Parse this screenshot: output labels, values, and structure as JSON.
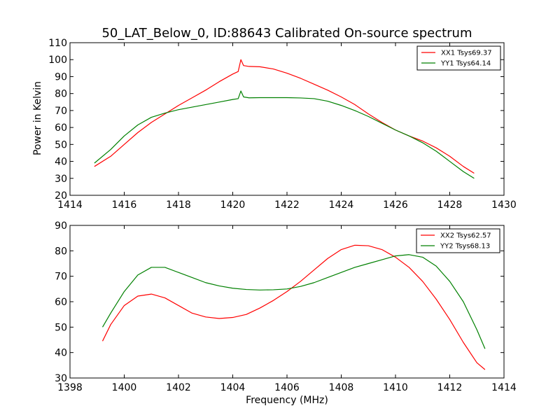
{
  "chart_data": [
    {
      "type": "line",
      "title": "50_LAT_Below_0, ID:88643 Calibrated On-source spectrum",
      "xlabel": "",
      "ylabel": "Power in Kelvin",
      "xlim": [
        1414,
        1430
      ],
      "ylim": [
        20,
        110
      ],
      "xticks": [
        1414,
        1416,
        1418,
        1420,
        1422,
        1424,
        1426,
        1428,
        1430
      ],
      "yticks": [
        20,
        30,
        40,
        50,
        60,
        70,
        80,
        90,
        100,
        110
      ],
      "grid": false,
      "legend_position": "top-right",
      "series": [
        {
          "name": "XX1 Tsys69.37",
          "color": "#ff0000",
          "points": [
            [
              1414.9,
              37
            ],
            [
              1415.5,
              43
            ],
            [
              1416,
              50
            ],
            [
              1416.5,
              57
            ],
            [
              1417,
              63
            ],
            [
              1417.5,
              68
            ],
            [
              1418,
              73
            ],
            [
              1418.5,
              77.5
            ],
            [
              1419,
              82
            ],
            [
              1419.5,
              87
            ],
            [
              1420,
              91.5
            ],
            [
              1420.2,
              93
            ],
            [
              1420.3,
              100
            ],
            [
              1420.4,
              96.5
            ],
            [
              1420.6,
              96
            ],
            [
              1421,
              95.8
            ],
            [
              1421.5,
              94.5
            ],
            [
              1422,
              92
            ],
            [
              1422.5,
              89
            ],
            [
              1423,
              85.5
            ],
            [
              1423.5,
              82
            ],
            [
              1424,
              78
            ],
            [
              1424.5,
              73.5
            ],
            [
              1425,
              68
            ],
            [
              1425.5,
              63
            ],
            [
              1426,
              58.5
            ],
            [
              1426.5,
              55
            ],
            [
              1427,
              52
            ],
            [
              1427.5,
              48
            ],
            [
              1428,
              43
            ],
            [
              1428.5,
              37
            ],
            [
              1428.9,
              33
            ]
          ]
        },
        {
          "name": "YY1 Tsys64.14",
          "color": "#008000",
          "points": [
            [
              1414.9,
              39
            ],
            [
              1415.5,
              47
            ],
            [
              1416,
              55
            ],
            [
              1416.5,
              61.5
            ],
            [
              1417,
              66
            ],
            [
              1417.5,
              68.5
            ],
            [
              1418,
              70.5
            ],
            [
              1418.5,
              72
            ],
            [
              1419,
              73.5
            ],
            [
              1419.5,
              75
            ],
            [
              1420,
              76.5
            ],
            [
              1420.2,
              77
            ],
            [
              1420.3,
              81.5
            ],
            [
              1420.4,
              78
            ],
            [
              1420.6,
              77.5
            ],
            [
              1421,
              77.6
            ],
            [
              1422,
              77.6
            ],
            [
              1422.5,
              77.4
            ],
            [
              1423,
              77
            ],
            [
              1423.5,
              75.5
            ],
            [
              1424,
              73
            ],
            [
              1424.5,
              70
            ],
            [
              1425,
              66.5
            ],
            [
              1425.5,
              62.5
            ],
            [
              1426,
              58.5
            ],
            [
              1426.5,
              55
            ],
            [
              1427,
              51
            ],
            [
              1427.5,
              46
            ],
            [
              1428,
              40
            ],
            [
              1428.5,
              34
            ],
            [
              1428.9,
              30
            ]
          ]
        }
      ]
    },
    {
      "type": "line",
      "title": "",
      "xlabel": "Frequency (MHz)",
      "ylabel": "",
      "xlim": [
        1398,
        1414
      ],
      "ylim": [
        30,
        90
      ],
      "xticks": [
        1398,
        1400,
        1402,
        1404,
        1406,
        1408,
        1410,
        1412,
        1414
      ],
      "yticks": [
        30,
        40,
        50,
        60,
        70,
        80,
        90
      ],
      "grid": false,
      "legend_position": "top-right",
      "series": [
        {
          "name": "XX2 Tsys62.57",
          "color": "#ff0000",
          "points": [
            [
              1399.2,
              44.5
            ],
            [
              1399.5,
              51
            ],
            [
              1400,
              58.5
            ],
            [
              1400.5,
              62.2
            ],
            [
              1401,
              63
            ],
            [
              1401.5,
              61.5
            ],
            [
              1402,
              58.5
            ],
            [
              1402.5,
              55.5
            ],
            [
              1403,
              54
            ],
            [
              1403.5,
              53.4
            ],
            [
              1404,
              53.8
            ],
            [
              1404.5,
              55
            ],
            [
              1405,
              57.5
            ],
            [
              1405.5,
              60.5
            ],
            [
              1406,
              64
            ],
            [
              1406.5,
              68
            ],
            [
              1407,
              72.5
            ],
            [
              1407.5,
              77
            ],
            [
              1408,
              80.5
            ],
            [
              1408.5,
              82.2
            ],
            [
              1409,
              82
            ],
            [
              1409.5,
              80.5
            ],
            [
              1410,
              77.5
            ],
            [
              1410.5,
              73.5
            ],
            [
              1411,
              68
            ],
            [
              1411.5,
              61
            ],
            [
              1412,
              53
            ],
            [
              1412.5,
              44
            ],
            [
              1413,
              36
            ],
            [
              1413.3,
              33.3
            ]
          ]
        },
        {
          "name": "YY2 Tsys68.13",
          "color": "#008000",
          "points": [
            [
              1399.2,
              50
            ],
            [
              1399.5,
              55.5
            ],
            [
              1400,
              64
            ],
            [
              1400.5,
              70.5
            ],
            [
              1401,
              73.5
            ],
            [
              1401.5,
              73.5
            ],
            [
              1402,
              71.5
            ],
            [
              1402.5,
              69.5
            ],
            [
              1403,
              67.5
            ],
            [
              1403.5,
              66.2
            ],
            [
              1404,
              65.3
            ],
            [
              1404.5,
              64.8
            ],
            [
              1405,
              64.6
            ],
            [
              1405.5,
              64.7
            ],
            [
              1406,
              65
            ],
            [
              1406.5,
              66
            ],
            [
              1407,
              67.5
            ],
            [
              1407.5,
              69.5
            ],
            [
              1408,
              71.5
            ],
            [
              1408.5,
              73.5
            ],
            [
              1409,
              75
            ],
            [
              1409.5,
              76.5
            ],
            [
              1410,
              78
            ],
            [
              1410.5,
              78.5
            ],
            [
              1411,
              77.5
            ],
            [
              1411.5,
              74
            ],
            [
              1412,
              68
            ],
            [
              1412.5,
              60
            ],
            [
              1413,
              49
            ],
            [
              1413.3,
              41.5
            ]
          ]
        }
      ]
    }
  ]
}
